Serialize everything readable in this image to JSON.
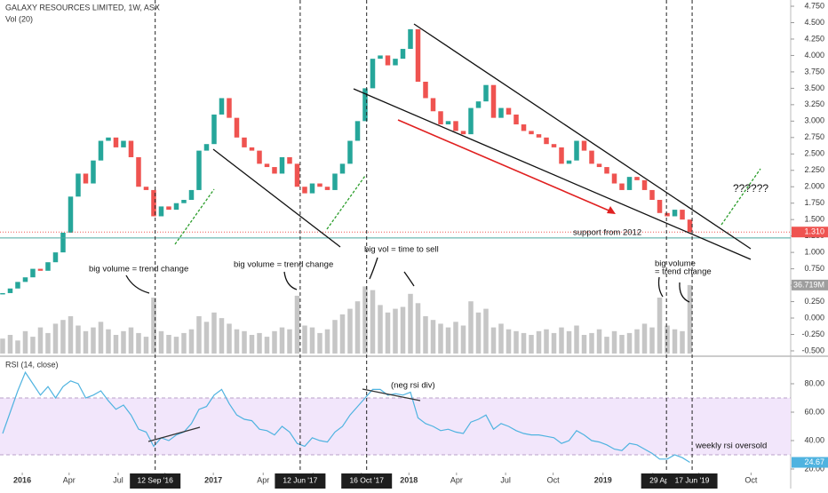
{
  "header": {
    "title": "GALAXY RESOURCES LIMITED, 1W, ASX",
    "volume_label": "Vol (20)",
    "rsi_label": "RSI (14, close)"
  },
  "chart_data": {
    "type": "candlestick",
    "open": [
      0.36,
      0.38,
      0.45,
      0.55,
      0.62,
      0.75,
      0.72,
      0.85,
      1.0,
      1.3,
      1.85,
      2.2,
      2.05,
      2.4,
      2.7,
      2.75,
      2.6,
      2.7,
      2.45,
      2.0,
      1.95,
      1.55,
      1.7,
      1.65,
      1.75,
      1.8,
      1.95,
      2.55,
      2.65,
      3.1,
      3.35,
      3.05,
      2.75,
      2.6,
      2.55,
      2.35,
      2.3,
      2.2,
      2.45,
      2.35,
      2.0,
      1.9,
      2.05,
      2.0,
      1.95,
      2.2,
      2.35,
      2.7,
      3.0,
      3.5,
      3.95,
      4.0,
      3.85,
      3.95,
      4.1,
      4.4,
      3.6,
      3.35,
      3.15,
      2.95,
      3.0,
      2.85,
      2.8,
      3.2,
      3.3,
      3.55,
      3.05,
      3.2,
      3.1,
      2.95,
      2.85,
      2.8,
      2.75,
      2.65,
      2.6,
      2.35,
      2.4,
      2.7,
      2.55,
      2.35,
      2.3,
      2.2,
      2.05,
      1.95,
      2.15,
      2.1,
      1.95,
      1.8,
      1.6,
      1.55,
      1.65,
      1.5
    ],
    "close": [
      0.38,
      0.45,
      0.55,
      0.62,
      0.75,
      0.72,
      0.85,
      1.0,
      1.3,
      1.85,
      2.2,
      2.05,
      2.4,
      2.7,
      2.75,
      2.6,
      2.7,
      2.45,
      2.0,
      1.95,
      1.55,
      1.7,
      1.65,
      1.75,
      1.8,
      1.95,
      2.55,
      2.65,
      3.1,
      3.35,
      3.05,
      2.75,
      2.6,
      2.55,
      2.35,
      2.3,
      2.2,
      2.45,
      2.35,
      2.0,
      1.9,
      2.05,
      2.0,
      1.95,
      2.2,
      2.35,
      2.7,
      3.0,
      3.5,
      3.95,
      4.0,
      3.85,
      3.95,
      4.1,
      4.4,
      3.6,
      3.35,
      3.15,
      2.95,
      3.0,
      2.85,
      2.8,
      3.2,
      3.3,
      3.55,
      3.05,
      3.2,
      3.1,
      2.95,
      2.85,
      2.8,
      2.75,
      2.65,
      2.6,
      2.35,
      2.4,
      2.7,
      2.55,
      2.35,
      2.3,
      2.2,
      2.05,
      1.95,
      2.15,
      2.1,
      1.95,
      1.8,
      1.6,
      1.55,
      1.65,
      1.5,
      1.31
    ],
    "volume": [
      8,
      10,
      7,
      12,
      9,
      14,
      11,
      16,
      18,
      20,
      15,
      12,
      14,
      17,
      13,
      10,
      12,
      14,
      11,
      9,
      30,
      12,
      10,
      9,
      11,
      13,
      20,
      17,
      22,
      19,
      16,
      13,
      12,
      10,
      11,
      9,
      12,
      14,
      13,
      31,
      15,
      14,
      11,
      13,
      18,
      21,
      24,
      28,
      36,
      34,
      26,
      22,
      24,
      25,
      32,
      27,
      20,
      18,
      16,
      14,
      17,
      15,
      28,
      22,
      24,
      14,
      16,
      13,
      12,
      11,
      10,
      12,
      13,
      11,
      14,
      12,
      15,
      10,
      11,
      13,
      9,
      12,
      10,
      11,
      13,
      16,
      14,
      30,
      15,
      13,
      12,
      36.719
    ],
    "rsi": [
      45,
      60,
      75,
      88,
      80,
      72,
      78,
      70,
      78,
      82,
      80,
      70,
      72,
      75,
      68,
      62,
      65,
      58,
      48,
      46,
      36,
      42,
      40,
      44,
      46,
      52,
      62,
      64,
      72,
      76,
      66,
      58,
      55,
      54,
      48,
      47,
      44,
      50,
      46,
      38,
      36,
      42,
      40,
      39,
      46,
      50,
      58,
      64,
      70,
      76,
      76,
      72,
      73,
      72,
      74,
      56,
      52,
      50,
      47,
      48,
      46,
      45,
      53,
      55,
      58,
      48,
      52,
      50,
      47,
      45,
      44,
      44,
      43,
      42,
      38,
      40,
      47,
      44,
      40,
      39,
      37,
      34,
      33,
      38,
      37,
      34,
      31,
      27,
      27,
      30,
      28,
      24.67
    ],
    "xlim": [
      -0.35,
      104.35
    ],
    "xticks": [
      {
        "value": 2.6,
        "label": "2016"
      },
      {
        "value": 8.8,
        "label": "Apr"
      },
      {
        "value": 15.3,
        "label": "Jul"
      },
      {
        "value": 21.5,
        "label": "Oct"
      },
      {
        "value": 27.9,
        "label": "2017"
      },
      {
        "value": 34.5,
        "label": "Apr"
      },
      {
        "value": 41.1,
        "label": "Jul"
      },
      {
        "value": 47.5,
        "label": "Oct"
      },
      {
        "value": 53.8,
        "label": "2018"
      },
      {
        "value": 60.1,
        "label": "Apr"
      },
      {
        "value": 66.6,
        "label": "Jul"
      },
      {
        "value": 72.9,
        "label": "Oct"
      },
      {
        "value": 79.5,
        "label": "2019"
      },
      {
        "value": 86.1,
        "label": "Apr"
      },
      {
        "value": 92.2,
        "label": "Jul"
      },
      {
        "value": 99.1,
        "label": "Oct"
      }
    ],
    "ylim": [
      -0.568,
      4.845
    ],
    "yticks": [
      {
        "value": -0.5,
        "label": "-0.500"
      },
      {
        "value": -0.25,
        "label": "-0.250"
      },
      {
        "value": 0,
        "label": "0.000"
      },
      {
        "value": 0.25,
        "label": "0.250"
      },
      {
        "value": 0.5,
        "label": "0.500"
      },
      {
        "value": 0.75,
        "label": "0.750"
      },
      {
        "value": 1,
        "label": "1.000"
      },
      {
        "value": 1.25,
        "label": "1.250"
      },
      {
        "value": 1.5,
        "label": "1.500"
      },
      {
        "value": 1.75,
        "label": "1.750"
      },
      {
        "value": 2,
        "label": "2.000"
      },
      {
        "value": 2.25,
        "label": "2.250"
      },
      {
        "value": 2.5,
        "label": "2.500"
      },
      {
        "value": 2.75,
        "label": "2.750"
      },
      {
        "value": 3,
        "label": "3.000"
      },
      {
        "value": 3.25,
        "label": "3.250"
      },
      {
        "value": 3.5,
        "label": "3.500"
      },
      {
        "value": 3.75,
        "label": "3.750"
      },
      {
        "value": 4,
        "label": "4.000"
      },
      {
        "value": 4.25,
        "label": "4.250"
      },
      {
        "value": 4.5,
        "label": "4.500"
      },
      {
        "value": 4.75,
        "label": "4.750"
      }
    ],
    "volume_ylim": [
      0,
      40
    ],
    "last_volume": {
      "value": 36.719,
      "label": "36.719M"
    },
    "last_price": {
      "value": 1.31,
      "label": "1.310"
    },
    "support": 1.22,
    "rsi_ylim": [
      17.5,
      98.75
    ],
    "rsi_yticks": [
      {
        "value": 20,
        "label": "20.00"
      },
      {
        "value": 40,
        "label": "40.00"
      },
      {
        "value": 60,
        "label": "60.00"
      },
      {
        "value": 80,
        "label": "80.00"
      }
    ],
    "rsi_band": [
      30,
      70
    ],
    "last_rsi": 24.67,
    "markers": [
      {
        "index": 20.2,
        "label": "12 Sep '16"
      },
      {
        "index": 39.4,
        "label": "12 Jun '17"
      },
      {
        "index": 48.2,
        "label": "16 Oct '17"
      },
      {
        "index": 87.9,
        "label": "29 Apr '19"
      },
      {
        "index": 91.3,
        "label": "17 Jun '19"
      }
    ],
    "annotations": {
      "trend1": "big volume = trend change",
      "trend2": "big volume = trend change",
      "sell": "big vol = time to sell",
      "trend3": [
        "big volume",
        "= trend change"
      ],
      "question": "??????",
      "support": "support from 2012",
      "rsi_div": "(neg rsi div)",
      "oversold": "weekly rsi oversold"
    },
    "up_color": "#26a69a",
    "down_color": "#ef5350",
    "volume_color": "#c6c6c6",
    "rsi_color": "#4fb3e0",
    "band_color": "#f2e6fb"
  }
}
